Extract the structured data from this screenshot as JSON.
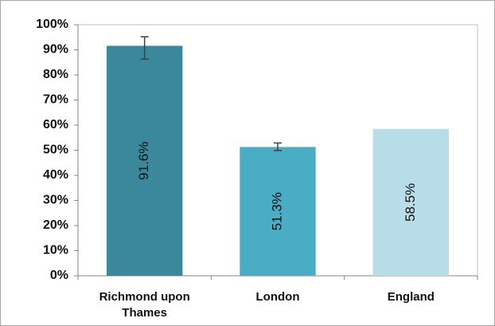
{
  "chart_data": {
    "type": "bar",
    "categories": [
      "Richmond upon Thames",
      "London",
      "England"
    ],
    "values": [
      91.6,
      51.3,
      58.5
    ],
    "value_labels": [
      "91.6%",
      "51.3%",
      "58.5%"
    ],
    "colors": [
      "#3b889c",
      "#4bacc6",
      "#b7dde8"
    ],
    "error_low": [
      86.3,
      49.9,
      null
    ],
    "error_high": [
      95.2,
      52.9,
      null
    ],
    "ylim": [
      0,
      100
    ],
    "yticks": [
      {
        "value": 0,
        "label": "0%"
      },
      {
        "value": 10,
        "label": "10%"
      },
      {
        "value": 20,
        "label": "20%"
      },
      {
        "value": 30,
        "label": "30%"
      },
      {
        "value": 40,
        "label": "40%"
      },
      {
        "value": 50,
        "label": "50%"
      },
      {
        "value": 60,
        "label": "60%"
      },
      {
        "value": 70,
        "label": "70%"
      },
      {
        "value": 80,
        "label": "80%"
      },
      {
        "value": 90,
        "label": "90%"
      },
      {
        "value": 100,
        "label": "100%"
      }
    ],
    "grid": false
  }
}
